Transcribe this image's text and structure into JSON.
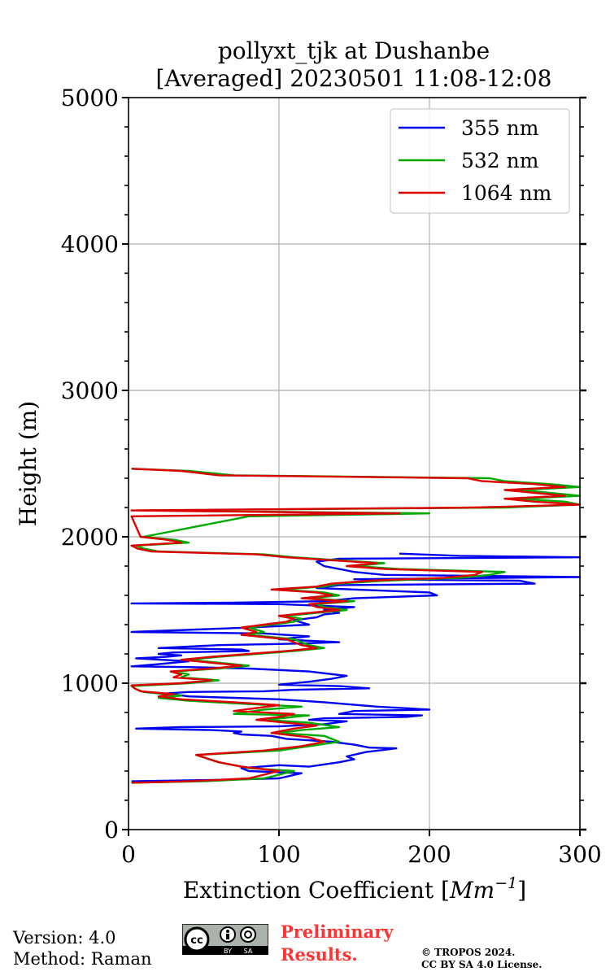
{
  "chart_data": {
    "type": "line",
    "title_line1": "pollyxt_tjk at Dushanbe",
    "title_line2": "[Averaged] 20230501 11:08-12:08",
    "xlabel_text": "Extinction Coefficient [",
    "xlabel_unit": "Mm",
    "xlabel_exp": "−1",
    "xlabel_close": "]",
    "ylabel": "Height (m)",
    "xlim": [
      0,
      300
    ],
    "ylim": [
      0,
      5000
    ],
    "xticks": [
      0,
      100,
      200,
      300
    ],
    "yticks": [
      0,
      1000,
      2000,
      3000,
      4000,
      5000
    ],
    "xtick_labels": [
      "0",
      "100",
      "200",
      "300"
    ],
    "ytick_labels": [
      "0",
      "1000",
      "2000",
      "3000",
      "4000",
      "5000"
    ],
    "yminor_step": 200,
    "grid": true,
    "legend_position": "top-right",
    "series": [
      {
        "name": "355 nm",
        "color": "#0000ee",
        "points": [
          [
            2,
            330
          ],
          [
            60,
            340
          ],
          [
            100,
            350
          ],
          [
            115,
            385
          ],
          [
            80,
            400
          ],
          [
            75,
            420
          ],
          [
            100,
            440
          ],
          [
            120,
            430
          ],
          [
            140,
            460
          ],
          [
            150,
            480
          ],
          [
            145,
            500
          ],
          [
            158,
            530
          ],
          [
            170,
            545
          ],
          [
            178,
            555
          ],
          [
            160,
            560
          ],
          [
            150,
            580
          ],
          [
            135,
            600
          ],
          [
            120,
            610
          ],
          [
            105,
            620
          ],
          [
            95,
            640
          ],
          [
            75,
            650
          ],
          [
            70,
            660
          ],
          [
            75,
            670
          ],
          [
            55,
            680
          ],
          [
            5,
            690
          ],
          [
            35,
            700
          ],
          [
            100,
            705
          ],
          [
            130,
            720
          ],
          [
            145,
            740
          ],
          [
            120,
            750
          ],
          [
            130,
            760
          ],
          [
            185,
            770
          ],
          [
            195,
            780
          ],
          [
            140,
            790
          ],
          [
            150,
            810
          ],
          [
            200,
            820
          ],
          [
            165,
            840
          ],
          [
            130,
            870
          ],
          [
            100,
            890
          ],
          [
            70,
            900
          ],
          [
            40,
            910
          ],
          [
            25,
            930
          ],
          [
            40,
            940
          ],
          [
            90,
            945
          ],
          [
            110,
            955
          ],
          [
            160,
            965
          ],
          [
            140,
            980
          ],
          [
            100,
            990
          ],
          [
            120,
            1010
          ],
          [
            135,
            1030
          ],
          [
            145,
            1050
          ],
          [
            120,
            1080
          ],
          [
            80,
            1100
          ],
          [
            40,
            1110
          ],
          [
            2,
            1115
          ],
          [
            20,
            1130
          ],
          [
            40,
            1150
          ],
          [
            5,
            1170
          ],
          [
            25,
            1180
          ],
          [
            35,
            1190
          ],
          [
            20,
            1200
          ],
          [
            30,
            1210
          ],
          [
            80,
            1220
          ],
          [
            75,
            1230
          ],
          [
            20,
            1240
          ],
          [
            60,
            1260
          ],
          [
            110,
            1270
          ],
          [
            140,
            1280
          ],
          [
            100,
            1300
          ],
          [
            120,
            1320
          ],
          [
            90,
            1340
          ],
          [
            2,
            1350
          ],
          [
            80,
            1380
          ],
          [
            120,
            1400
          ],
          [
            110,
            1430
          ],
          [
            125,
            1450
          ],
          [
            130,
            1470
          ],
          [
            140,
            1480
          ],
          [
            130,
            1500
          ],
          [
            150,
            1520
          ],
          [
            100,
            1540
          ],
          [
            2,
            1545
          ],
          [
            70,
            1550
          ],
          [
            130,
            1560
          ],
          [
            150,
            1580
          ],
          [
            205,
            1600
          ],
          [
            200,
            1620
          ],
          [
            150,
            1640
          ],
          [
            125,
            1650
          ],
          [
            140,
            1670
          ],
          [
            270,
            1680
          ],
          [
            260,
            1700
          ],
          [
            150,
            1710
          ],
          [
            300,
            1725
          ],
          [
            170,
            1740
          ],
          [
            150,
            1760
          ],
          [
            140,
            1780
          ],
          [
            130,
            1800
          ],
          [
            125,
            1830
          ],
          [
            140,
            1850
          ],
          [
            300,
            1860
          ],
          [
            220,
            1870
          ],
          [
            180,
            1885
          ]
        ]
      },
      {
        "name": "532 nm",
        "color": "#00aa00",
        "points": [
          [
            2,
            320
          ],
          [
            50,
            330
          ],
          [
            90,
            350
          ],
          [
            110,
            400
          ],
          [
            80,
            420
          ],
          [
            60,
            460
          ],
          [
            45,
            510
          ],
          [
            100,
            540
          ],
          [
            120,
            570
          ],
          [
            140,
            600
          ],
          [
            130,
            640
          ],
          [
            100,
            660
          ],
          [
            115,
            680
          ],
          [
            140,
            700
          ],
          [
            120,
            730
          ],
          [
            90,
            750
          ],
          [
            110,
            770
          ],
          [
            120,
            780
          ],
          [
            70,
            790
          ],
          [
            90,
            820
          ],
          [
            115,
            840
          ],
          [
            75,
            860
          ],
          [
            40,
            880
          ],
          [
            20,
            900
          ],
          [
            35,
            915
          ],
          [
            10,
            940
          ],
          [
            5,
            960
          ],
          [
            2,
            980
          ],
          [
            40,
            1000
          ],
          [
            60,
            1020
          ],
          [
            35,
            1040
          ],
          [
            40,
            1060
          ],
          [
            30,
            1080
          ],
          [
            60,
            1100
          ],
          [
            80,
            1120
          ],
          [
            60,
            1140
          ],
          [
            40,
            1160
          ],
          [
            60,
            1180
          ],
          [
            85,
            1200
          ],
          [
            110,
            1220
          ],
          [
            130,
            1240
          ],
          [
            120,
            1260
          ],
          [
            115,
            1280
          ],
          [
            110,
            1300
          ],
          [
            80,
            1330
          ],
          [
            90,
            1350
          ],
          [
            80,
            1380
          ],
          [
            95,
            1400
          ],
          [
            110,
            1420
          ],
          [
            115,
            1440
          ],
          [
            105,
            1460
          ],
          [
            125,
            1480
          ],
          [
            145,
            1500
          ],
          [
            130,
            1520
          ],
          [
            125,
            1540
          ],
          [
            150,
            1560
          ],
          [
            120,
            1580
          ],
          [
            140,
            1600
          ],
          [
            130,
            1620
          ],
          [
            100,
            1640
          ],
          [
            130,
            1660
          ],
          [
            140,
            1680
          ],
          [
            170,
            1700
          ],
          [
            220,
            1720
          ],
          [
            240,
            1740
          ],
          [
            250,
            1760
          ],
          [
            180,
            1780
          ],
          [
            150,
            1800
          ],
          [
            170,
            1820
          ],
          [
            140,
            1840
          ],
          [
            110,
            1860
          ],
          [
            90,
            1880
          ],
          [
            20,
            1900
          ],
          [
            10,
            1920
          ],
          [
            5,
            1940
          ],
          [
            40,
            1960
          ],
          [
            30,
            1980
          ],
          [
            10,
            2000
          ],
          [
            80,
            2140
          ],
          [
            200,
            2160
          ],
          [
            10,
            2180
          ],
          [
            250,
            2200
          ],
          [
            300,
            2220
          ],
          [
            290,
            2240
          ],
          [
            260,
            2260
          ],
          [
            300,
            2280
          ],
          [
            280,
            2300
          ],
          [
            260,
            2320
          ],
          [
            300,
            2340
          ],
          [
            280,
            2360
          ],
          [
            250,
            2380
          ],
          [
            240,
            2400
          ],
          [
            70,
            2420
          ],
          [
            40,
            2450
          ],
          [
            2,
            2465
          ]
        ]
      },
      {
        "name": "1064 nm",
        "color": "#dd0000",
        "points": [
          [
            2,
            320
          ],
          [
            40,
            330
          ],
          [
            80,
            350
          ],
          [
            100,
            400
          ],
          [
            75,
            430
          ],
          [
            60,
            460
          ],
          [
            45,
            510
          ],
          [
            90,
            540
          ],
          [
            115,
            570
          ],
          [
            130,
            600
          ],
          [
            120,
            630
          ],
          [
            95,
            660
          ],
          [
            110,
            690
          ],
          [
            125,
            710
          ],
          [
            105,
            730
          ],
          [
            85,
            750
          ],
          [
            100,
            770
          ],
          [
            110,
            790
          ],
          [
            70,
            810
          ],
          [
            85,
            830
          ],
          [
            100,
            850
          ],
          [
            70,
            870
          ],
          [
            35,
            890
          ],
          [
            20,
            910
          ],
          [
            30,
            925
          ],
          [
            8,
            945
          ],
          [
            4,
            965
          ],
          [
            2,
            985
          ],
          [
            35,
            1000
          ],
          [
            55,
            1020
          ],
          [
            30,
            1040
          ],
          [
            35,
            1060
          ],
          [
            28,
            1080
          ],
          [
            55,
            1100
          ],
          [
            75,
            1120
          ],
          [
            55,
            1140
          ],
          [
            35,
            1160
          ],
          [
            55,
            1180
          ],
          [
            80,
            1200
          ],
          [
            105,
            1220
          ],
          [
            125,
            1240
          ],
          [
            115,
            1260
          ],
          [
            110,
            1280
          ],
          [
            105,
            1300
          ],
          [
            75,
            1330
          ],
          [
            85,
            1350
          ],
          [
            75,
            1380
          ],
          [
            90,
            1400
          ],
          [
            105,
            1420
          ],
          [
            110,
            1440
          ],
          [
            100,
            1460
          ],
          [
            120,
            1480
          ],
          [
            140,
            1500
          ],
          [
            125,
            1520
          ],
          [
            120,
            1540
          ],
          [
            145,
            1560
          ],
          [
            115,
            1580
          ],
          [
            135,
            1600
          ],
          [
            125,
            1620
          ],
          [
            95,
            1640
          ],
          [
            125,
            1660
          ],
          [
            135,
            1680
          ],
          [
            160,
            1700
          ],
          [
            210,
            1720
          ],
          [
            230,
            1740
          ],
          [
            235,
            1760
          ],
          [
            170,
            1780
          ],
          [
            145,
            1800
          ],
          [
            165,
            1820
          ],
          [
            135,
            1840
          ],
          [
            105,
            1860
          ],
          [
            85,
            1880
          ],
          [
            15,
            1900
          ],
          [
            6,
            1920
          ],
          [
            2,
            1940
          ],
          [
            35,
            1960
          ],
          [
            25,
            1980
          ],
          [
            8,
            2000
          ],
          [
            2,
            2140
          ],
          [
            180,
            2160
          ],
          [
            2,
            2180
          ],
          [
            230,
            2200
          ],
          [
            300,
            2220
          ],
          [
            270,
            2240
          ],
          [
            250,
            2260
          ],
          [
            290,
            2280
          ],
          [
            270,
            2300
          ],
          [
            250,
            2320
          ],
          [
            290,
            2340
          ],
          [
            270,
            2360
          ],
          [
            235,
            2380
          ],
          [
            225,
            2400
          ],
          [
            60,
            2420
          ],
          [
            35,
            2450
          ],
          [
            2,
            2465
          ]
        ]
      }
    ]
  },
  "footer": {
    "version": "Version: 4.0",
    "method": "Method: Raman",
    "preliminary_line1": "Preliminary",
    "preliminary_line2": "Results.",
    "copyright_line1": "© TROPOS 2024.",
    "copyright_line2": "CC BY SA 4.0 License.",
    "cc_label": "cc",
    "by_label": "BY",
    "sa_label": "SA"
  }
}
